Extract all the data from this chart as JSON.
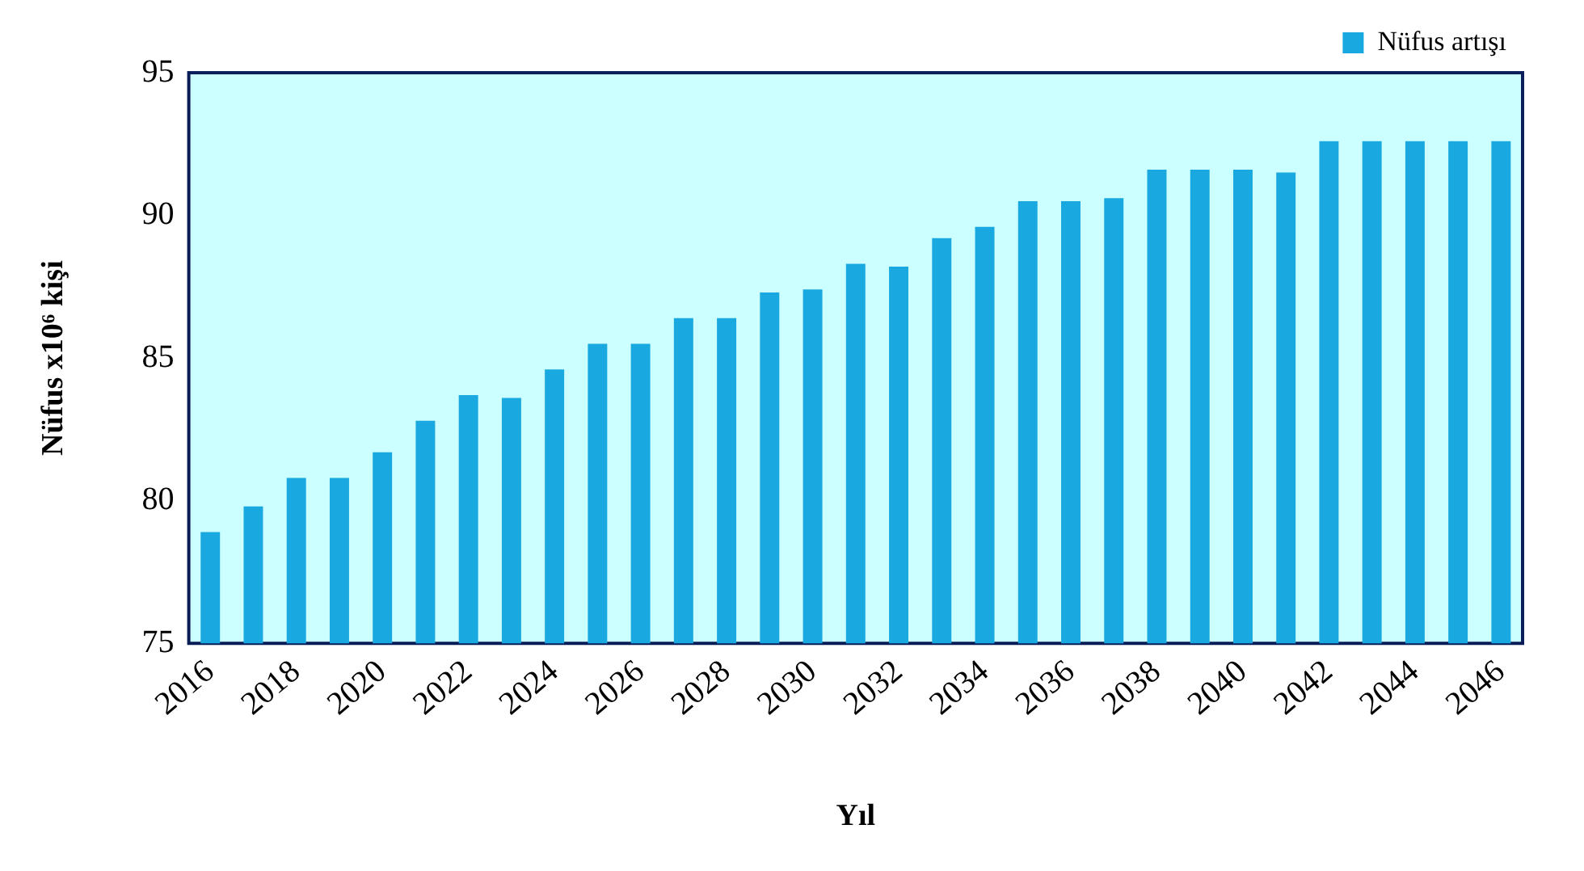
{
  "chart_data": {
    "type": "bar",
    "xlabel": "Yıl",
    "ylabel": "Nüfus x10⁶ kişi",
    "categories": [
      "2016",
      null,
      "2018",
      null,
      "2020",
      null,
      "2022",
      null,
      "2024",
      null,
      "2026",
      null,
      "2028",
      null,
      "2030",
      null,
      "2032",
      null,
      "2034",
      null,
      "2036",
      null,
      "2038",
      null,
      "2040",
      null,
      "2042",
      null,
      "2044",
      null,
      "2046"
    ],
    "series": [
      {
        "name": "Nüfus artışı",
        "color": "#19a9e0",
        "values": [
          78.9,
          79.8,
          80.8,
          80.8,
          81.7,
          82.8,
          83.7,
          83.6,
          84.6,
          85.5,
          85.5,
          86.4,
          86.4,
          87.3,
          87.4,
          88.3,
          88.2,
          89.2,
          89.6,
          90.5,
          90.5,
          90.6,
          91.6,
          91.6,
          91.6,
          91.5,
          92.6,
          92.6,
          92.6,
          92.6,
          92.6
        ]
      }
    ],
    "ylim": [
      75,
      95
    ],
    "yticks": [
      75,
      80,
      85,
      90,
      95
    ],
    "grid": false,
    "legend": "top right"
  }
}
